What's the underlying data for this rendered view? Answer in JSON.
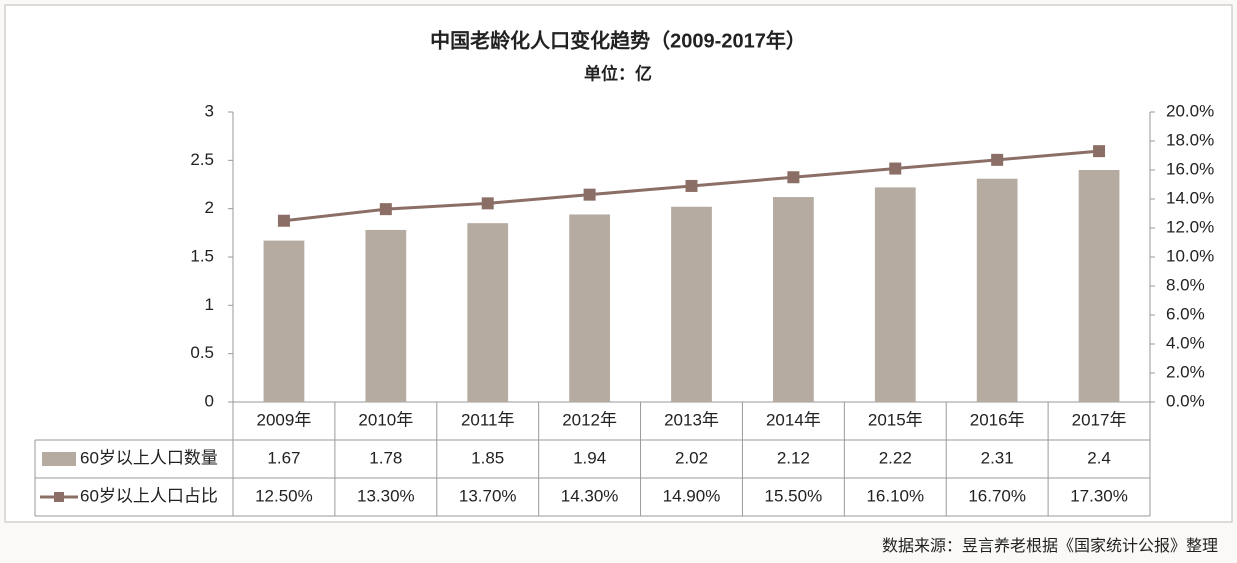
{
  "chart_data": {
    "type": "bar-line",
    "title": "中国老龄化人口变化趋势（2009-2017年）",
    "subtitle": "单位：亿",
    "source": "数据来源：昱言养老根据《国家统计公报》整理",
    "categories": [
      "2009年",
      "2010年",
      "2011年",
      "2012年",
      "2013年",
      "2014年",
      "2015年",
      "2016年",
      "2017年"
    ],
    "series": [
      {
        "name": "60岁以上人口数量",
        "type": "bar",
        "color": "#b5aba1",
        "values": [
          1.67,
          1.78,
          1.85,
          1.94,
          2.02,
          2.12,
          2.22,
          2.31,
          2.4
        ]
      },
      {
        "name": "60岁以上人口占比",
        "type": "line",
        "axis": "y2",
        "color": "#8b6f66",
        "values": [
          12.5,
          13.3,
          13.7,
          14.3,
          14.9,
          15.5,
          16.1,
          16.7,
          17.3
        ],
        "value_labels": [
          "12.50%",
          "13.30%",
          "13.70%",
          "14.30%",
          "14.90%",
          "15.50%",
          "16.10%",
          "16.70%",
          "17.30%"
        ]
      }
    ],
    "ylim": [
      0,
      3
    ],
    "yticks": [
      0,
      0.5,
      1,
      1.5,
      2,
      2.5,
      3
    ],
    "y2lim": [
      0,
      20
    ],
    "y2ticks": [
      {
        "value": 0,
        "label": "0.0%"
      },
      {
        "value": 2,
        "label": "2.0%"
      },
      {
        "value": 4,
        "label": "4.0%"
      },
      {
        "value": 6,
        "label": "6.0%"
      },
      {
        "value": 8,
        "label": "8.0%"
      },
      {
        "value": 10,
        "label": "10.0%"
      },
      {
        "value": 12,
        "label": "12.0%"
      },
      {
        "value": 14,
        "label": "14.0%"
      },
      {
        "value": 16,
        "label": "16.0%"
      },
      {
        "value": 18,
        "label": "18.0%"
      },
      {
        "value": 20,
        "label": "20.0%"
      }
    ],
    "grid": false
  }
}
